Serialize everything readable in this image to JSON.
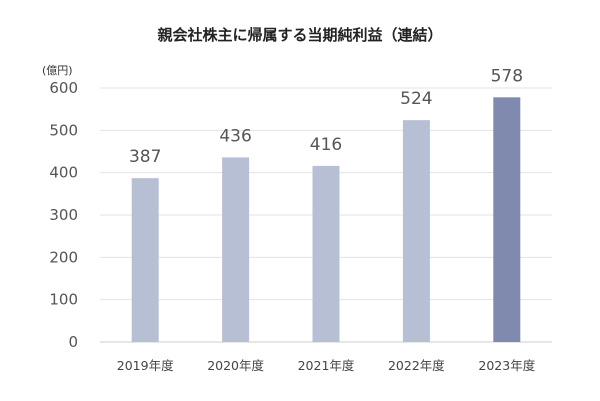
{
  "chart_data": {
    "type": "bar",
    "title": "親会社株主に帰属する当期純利益（連結）",
    "unit_label": "(億円)",
    "categories": [
      "2019年度",
      "2020年度",
      "2021年度",
      "2022年度",
      "2023年度"
    ],
    "values": [
      387,
      436,
      416,
      524,
      578
    ],
    "data_labels": [
      "387",
      "436",
      "416",
      "524",
      "578"
    ],
    "ylim": [
      0,
      600
    ],
    "yticks": [
      0,
      100,
      200,
      300,
      400,
      500,
      600
    ],
    "ytick_labels": [
      "0",
      "100",
      "200",
      "300",
      "400",
      "500",
      "600"
    ],
    "grid": true,
    "legend": "none",
    "colors": {
      "bar": "#b6bfd3",
      "highlight_bar": "#7f8aae",
      "highlight_index": 4
    }
  }
}
